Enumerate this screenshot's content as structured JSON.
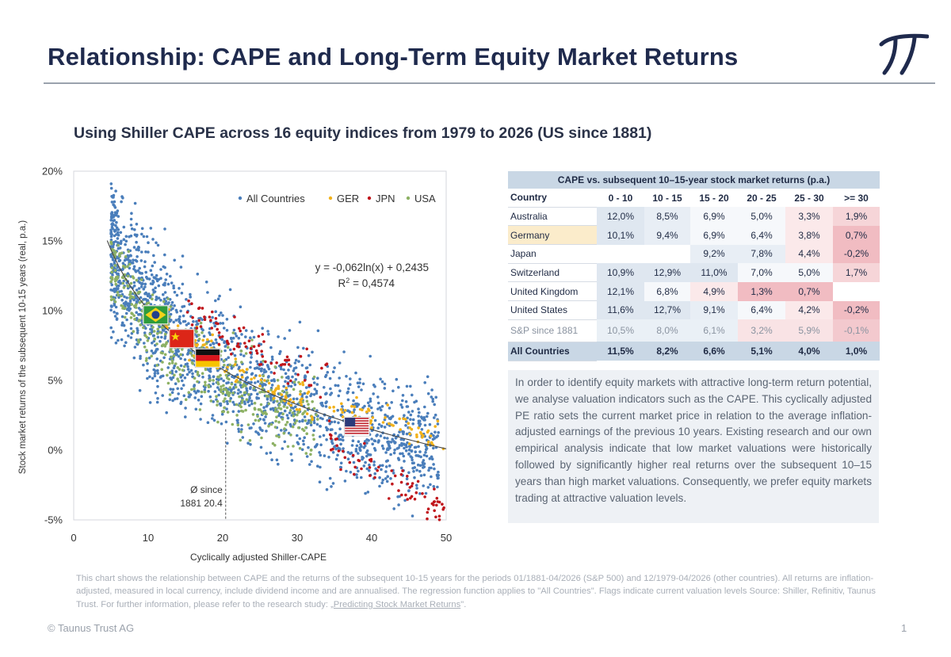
{
  "page": {
    "title": "Relationship: CAPE and Long-Term Equity Market Returns",
    "subtitle": "Using Shiller CAPE across 16 equity indices from 1979 to 2026 (US since 1881)",
    "copyright": "© Taunus Trust AG",
    "page_number": "1"
  },
  "chart_data": {
    "type": "scatter",
    "xlabel": "Cyclically adjusted Shiller-CAPE",
    "ylabel": "Stock market returns of the subsequent 10-15 years (real, p.a.)",
    "xlim": [
      0,
      50
    ],
    "ylim": [
      -0.05,
      0.2
    ],
    "x_ticks": [
      "0",
      "10",
      "20",
      "30",
      "40",
      "50"
    ],
    "y_ticks": [
      "-5%",
      "0%",
      "5%",
      "10%",
      "15%",
      "20%"
    ],
    "legend": {
      "placement": "top-right",
      "entries": [
        "All Countries",
        "GER",
        "JPN",
        "USA"
      ]
    },
    "series": [
      {
        "name": "All Countries",
        "color": "#4a7ebb",
        "count": 1800
      },
      {
        "name": "GER",
        "color": "#f2b21b",
        "count": 160
      },
      {
        "name": "JPN",
        "color": "#c0161c",
        "count": 150
      },
      {
        "name": "USA",
        "color": "#8db164",
        "count": 450
      }
    ],
    "regression": {
      "a": -0.062,
      "b": 0.2435,
      "x_from": 4.5,
      "x_to": 50,
      "equation": "y = -0,062ln(x) + 0,2435",
      "r2_prefix": "R",
      "r2_exp": "2",
      "r2_value": " = 0,4574"
    },
    "mean_marker": {
      "x": 20.4,
      "label_line1": "Ø since",
      "label_line2": "1881 20.4"
    },
    "flags": [
      {
        "name": "brazil-flag",
        "x": 11,
        "y": 0.097
      },
      {
        "name": "china-flag",
        "x": 14.5,
        "y": 0.08
      },
      {
        "name": "germany-flag",
        "x": 18,
        "y": 0.066
      },
      {
        "name": "usa-flag",
        "x": 38,
        "y": 0.017
      }
    ]
  },
  "table": {
    "title": "CAPE vs. subsequent 10–15-year stock market returns (p.a.)",
    "columns": [
      "Country",
      "0 - 10",
      "10 - 15",
      "15 - 20",
      "20 - 25",
      "25 - 30",
      ">= 30"
    ],
    "rows": [
      {
        "country": "Australia",
        "values": [
          "12,0%",
          "8,5%",
          "6,9%",
          "5,0%",
          "3,3%",
          "1,9%"
        ]
      },
      {
        "country": "Germany",
        "values": [
          "10,1%",
          "9,4%",
          "6,9%",
          "6,4%",
          "3,8%",
          "0,7%"
        ]
      },
      {
        "country": "Japan",
        "values": [
          "",
          "",
          "9,2%",
          "7,8%",
          "4,4%",
          "-0,2%"
        ]
      },
      {
        "country": "Switzerland",
        "values": [
          "10,9%",
          "12,9%",
          "11,0%",
          "7,0%",
          "5,0%",
          "1,7%"
        ]
      },
      {
        "country": "United Kingdom",
        "values": [
          "12,1%",
          "6,8%",
          "4,9%",
          "1,3%",
          "0,7%",
          ""
        ]
      },
      {
        "country": "United States",
        "values": [
          "11,6%",
          "12,7%",
          "9,1%",
          "6,4%",
          "4,2%",
          "-0,2%"
        ]
      },
      {
        "country": "S&P since 1881",
        "values": [
          "10,5%",
          "8,0%",
          "6,1%",
          "3,2%",
          "5,9%",
          "-0,1%"
        ]
      },
      {
        "country": "All Countries",
        "values": [
          "11,5%",
          "8,2%",
          "6,6%",
          "5,1%",
          "4,0%",
          "1,0%"
        ]
      }
    ]
  },
  "description": "In order to identify equity markets with attractive long-term return potential, we analyse valuation indicators such as the CAPE. This cyclically adjusted PE ratio sets the current market price in relation to the average inflation-adjusted earnings of the previous 10 years. Existing research and our own empirical analysis indicate that low market valuations were historically followed by significantly higher real returns over the subsequent 10–15 years than high market valuations. Consequently, we prefer equity markets trading at attractive valuation levels.",
  "footnote": {
    "text": "This chart shows the relationship between CAPE and the returns of the subsequent 10-15 years for the periods 01/1881-04/2026 (S&P 500) and 12/1979-04/2026 (other countries). All returns are inflation-adjusted, measured in local currency, include dividend income and are annualised. The regression function applies to \"All Countries\". Flags indicate current valuation levels Source: Shiller, Refinitiv, Taunus Trust. For further information, please refer to the research study: ",
    "link": "„Predicting Stock Market Returns",
    "after": "\"."
  },
  "colors": {
    "all": "#4a7ebb",
    "ger": "#f2b21b",
    "jpn": "#c0161c",
    "usa": "#8db164",
    "table_header": "#c9d7e5",
    "cell_blue": "#dfe7f0",
    "cell_pink": "#f6d5d8",
    "cell_strong_pink": "#f1bcc2",
    "cell_yellow": "#fbeccb"
  }
}
